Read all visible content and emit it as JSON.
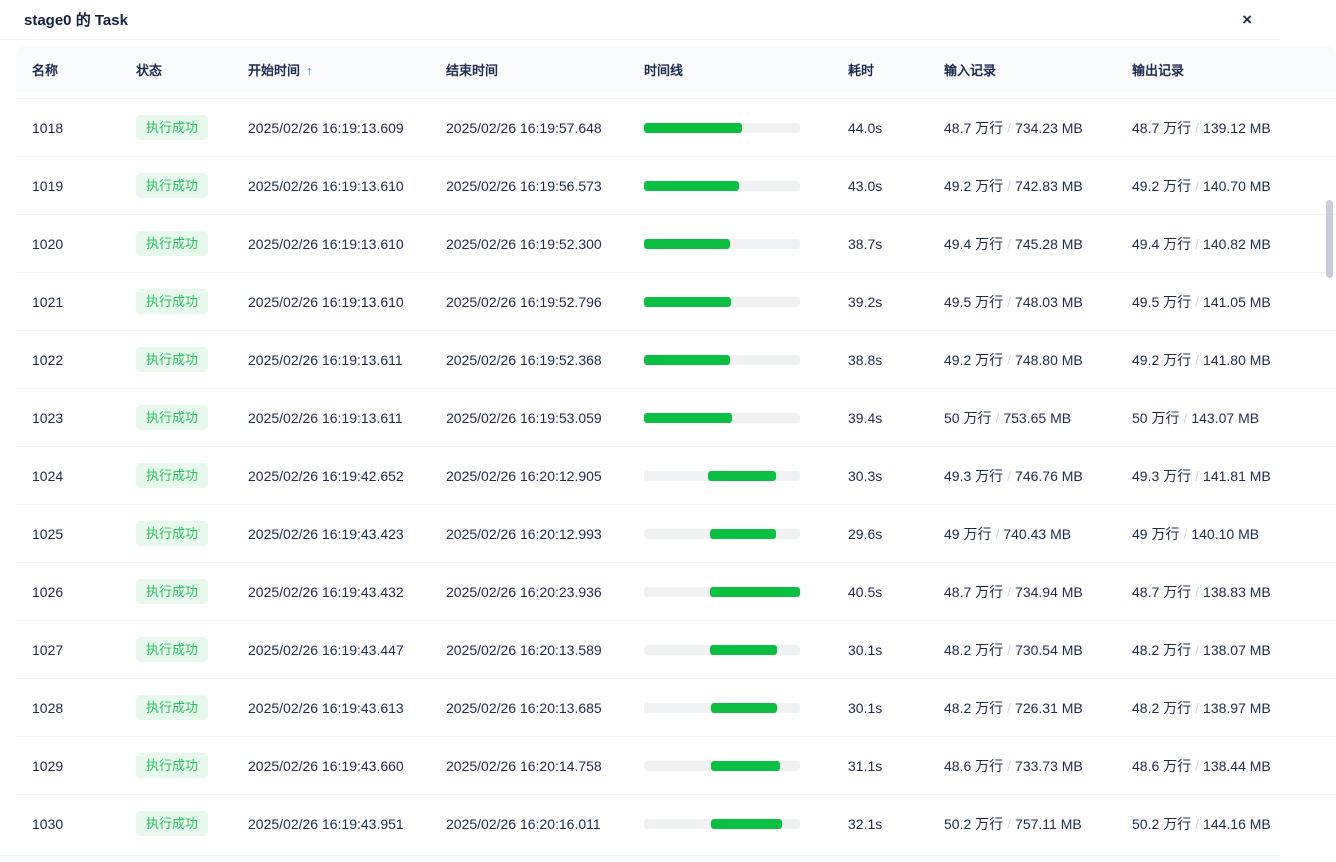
{
  "modal": {
    "title": "stage0 的 Task",
    "close_icon": "×"
  },
  "table": {
    "columns": [
      {
        "label": "名称"
      },
      {
        "label": "状态"
      },
      {
        "label": "开始时间",
        "sorted": "ascending"
      },
      {
        "label": "结束时间"
      },
      {
        "label": "时间线"
      },
      {
        "label": "耗时"
      },
      {
        "label": "输入记录"
      },
      {
        "label": "输出记录"
      }
    ],
    "sort_icon": "↑",
    "separator": "/",
    "rows": [
      {
        "name": "1018",
        "status": "执行成功",
        "start": "2025/02/26 16:19:13.609",
        "end": "2025/02/26 16:19:57.648",
        "timeline": {
          "start_pct": 0,
          "width_pct": 62.6
        },
        "duration": "44.0s",
        "input_rows": "48.7 万行",
        "input_size": "734.23 MB",
        "output_rows": "48.7 万行",
        "output_size": "139.12 MB"
      },
      {
        "name": "1019",
        "status": "执行成功",
        "start": "2025/02/26 16:19:13.610",
        "end": "2025/02/26 16:19:56.573",
        "timeline": {
          "start_pct": 0,
          "width_pct": 61.1
        },
        "duration": "43.0s",
        "input_rows": "49.2 万行",
        "input_size": "742.83 MB",
        "output_rows": "49.2 万行",
        "output_size": "140.70 MB"
      },
      {
        "name": "1020",
        "status": "执行成功",
        "start": "2025/02/26 16:19:13.610",
        "end": "2025/02/26 16:19:52.300",
        "timeline": {
          "start_pct": 0,
          "width_pct": 55.0
        },
        "duration": "38.7s",
        "input_rows": "49.4 万行",
        "input_size": "745.28 MB",
        "output_rows": "49.4 万行",
        "output_size": "140.82 MB"
      },
      {
        "name": "1021",
        "status": "执行成功",
        "start": "2025/02/26 16:19:13.610",
        "end": "2025/02/26 16:19:52.796",
        "timeline": {
          "start_pct": 0,
          "width_pct": 55.7
        },
        "duration": "39.2s",
        "input_rows": "49.5 万行",
        "input_size": "748.03 MB",
        "output_rows": "49.5 万行",
        "output_size": "141.05 MB"
      },
      {
        "name": "1022",
        "status": "执行成功",
        "start": "2025/02/26 16:19:13.611",
        "end": "2025/02/26 16:19:52.368",
        "timeline": {
          "start_pct": 0,
          "width_pct": 55.1
        },
        "duration": "38.8s",
        "input_rows": "49.2 万行",
        "input_size": "748.80 MB",
        "output_rows": "49.2 万行",
        "output_size": "141.80 MB"
      },
      {
        "name": "1023",
        "status": "执行成功",
        "start": "2025/02/26 16:19:13.611",
        "end": "2025/02/26 16:19:53.059",
        "timeline": {
          "start_pct": 0,
          "width_pct": 56.1
        },
        "duration": "39.4s",
        "input_rows": "50 万行",
        "input_size": "753.65 MB",
        "output_rows": "50 万行",
        "output_size": "143.07 MB"
      },
      {
        "name": "1024",
        "status": "执行成功",
        "start": "2025/02/26 16:19:42.652",
        "end": "2025/02/26 16:20:12.905",
        "timeline": {
          "start_pct": 41.3,
          "width_pct": 43.0
        },
        "duration": "30.3s",
        "input_rows": "49.3 万行",
        "input_size": "746.76 MB",
        "output_rows": "49.3 万行",
        "output_size": "141.81 MB"
      },
      {
        "name": "1025",
        "status": "执行成功",
        "start": "2025/02/26 16:19:43.423",
        "end": "2025/02/26 16:20:12.993",
        "timeline": {
          "start_pct": 42.4,
          "width_pct": 42.0
        },
        "duration": "29.6s",
        "input_rows": "49 万行",
        "input_size": "740.43 MB",
        "output_rows": "49 万行",
        "output_size": "140.10 MB"
      },
      {
        "name": "1026",
        "status": "执行成功",
        "start": "2025/02/26 16:19:43.432",
        "end": "2025/02/26 16:20:23.936",
        "timeline": {
          "start_pct": 42.4,
          "width_pct": 57.6
        },
        "duration": "40.5s",
        "input_rows": "48.7 万行",
        "input_size": "734.94 MB",
        "output_rows": "48.7 万行",
        "output_size": "138.83 MB"
      },
      {
        "name": "1027",
        "status": "执行成功",
        "start": "2025/02/26 16:19:43.447",
        "end": "2025/02/26 16:20:13.589",
        "timeline": {
          "start_pct": 42.4,
          "width_pct": 42.9
        },
        "duration": "30.1s",
        "input_rows": "48.2 万行",
        "input_size": "730.54 MB",
        "output_rows": "48.2 万行",
        "output_size": "138.07 MB"
      },
      {
        "name": "1028",
        "status": "执行成功",
        "start": "2025/02/26 16:19:43.613",
        "end": "2025/02/26 16:20:13.685",
        "timeline": {
          "start_pct": 42.7,
          "width_pct": 42.7
        },
        "duration": "30.1s",
        "input_rows": "48.2 万行",
        "input_size": "726.31 MB",
        "output_rows": "48.2 万行",
        "output_size": "138.97 MB"
      },
      {
        "name": "1029",
        "status": "执行成功",
        "start": "2025/02/26 16:19:43.660",
        "end": "2025/02/26 16:20:14.758",
        "timeline": {
          "start_pct": 42.7,
          "width_pct": 44.2
        },
        "duration": "31.1s",
        "input_rows": "48.6 万行",
        "input_size": "733.73 MB",
        "output_rows": "48.6 万行",
        "output_size": "138.44 MB"
      },
      {
        "name": "1030",
        "status": "执行成功",
        "start": "2025/02/26 16:19:43.951",
        "end": "2025/02/26 16:20:16.011",
        "timeline": {
          "start_pct": 43.1,
          "width_pct": 45.6
        },
        "duration": "32.1s",
        "input_rows": "50.2 万行",
        "input_size": "757.11 MB",
        "output_rows": "50.2 万行",
        "output_size": "144.16 MB"
      }
    ]
  },
  "colors": {
    "accent_green": "#0abf42",
    "badge_bg": "#e7f9ed",
    "badge_text": "#27c05f",
    "sort_arrow_blue": "#3370ff",
    "text_dark": "#1c2b4a",
    "bar_track": "#f0f1f3"
  }
}
